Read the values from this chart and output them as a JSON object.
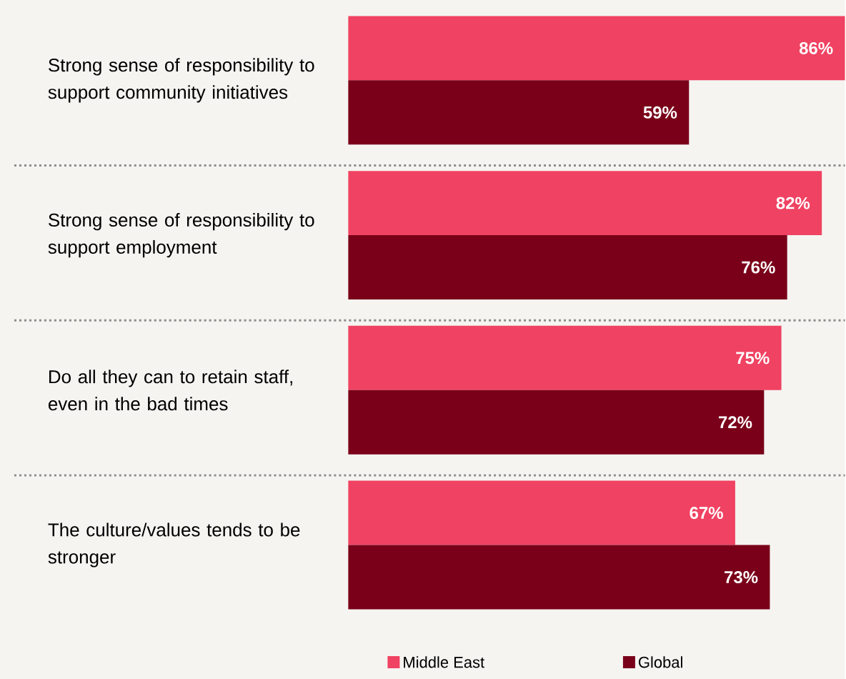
{
  "chart_data": {
    "type": "bar",
    "orientation": "horizontal",
    "categories": [
      "Strong sense of responsibility to support community initiatives",
      "Strong sense of responsibility to support employment",
      "Do all they can to retain staff, even in the bad times",
      "The culture/values tends to be stronger"
    ],
    "series": [
      {
        "name": "Middle East",
        "color": "#f04262",
        "values": [
          86,
          82,
          75,
          67
        ],
        "value_labels": [
          "86%",
          "82%",
          "75%",
          "67%"
        ]
      },
      {
        "name": "Global",
        "color": "#7a0019",
        "values": [
          59,
          76,
          72,
          73
        ],
        "value_labels": [
          "59%",
          "76%",
          "72%",
          "73%"
        ]
      }
    ],
    "legend": "bottom"
  }
}
